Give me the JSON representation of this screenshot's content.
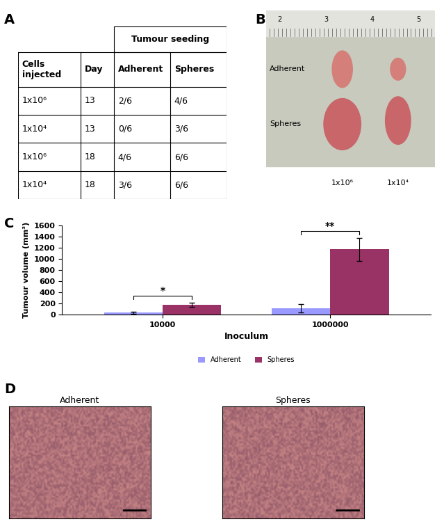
{
  "panel_labels": [
    "A",
    "B",
    "C",
    "D"
  ],
  "table": {
    "group_header": "Tumour seeding",
    "columns": [
      "Cells\ninjected",
      "Day",
      "Adherent",
      "Spheres"
    ],
    "rows": [
      [
        "1x10⁶",
        "13",
        "2/6",
        "4/6"
      ],
      [
        "1x10⁴",
        "13",
        "0/6",
        "3/6"
      ],
      [
        "1x10⁶",
        "18",
        "4/6",
        "6/6"
      ],
      [
        "1x10⁴",
        "18",
        "3/6",
        "6/6"
      ]
    ]
  },
  "photo": {
    "ruler_marks": [
      2,
      3,
      4,
      5
    ],
    "row_labels": [
      "Adherent",
      "Spheres"
    ],
    "column_labels": [
      "1x10⁶",
      "1x10⁴"
    ]
  },
  "chart_data": {
    "type": "bar",
    "x_label": "Inoculum",
    "y_label": "Tumour volume (mm³)",
    "categories": [
      "10000",
      "1000000"
    ],
    "series": [
      {
        "name": "Adherent",
        "color": "#9999ff",
        "values": [
          30,
          110
        ],
        "errors": [
          15,
          80
        ]
      },
      {
        "name": "Spheres",
        "color": "#993366",
        "values": [
          170,
          1170
        ],
        "errors": [
          35,
          205
        ]
      }
    ],
    "ylim": [
      0,
      1600
    ],
    "yticks": [
      0,
      200,
      400,
      600,
      800,
      1000,
      1200,
      1400,
      1600
    ],
    "legend": "lower center",
    "significance": [
      "*",
      "**"
    ]
  },
  "histology": {
    "titles": [
      "Adherent",
      "Spheres"
    ]
  }
}
